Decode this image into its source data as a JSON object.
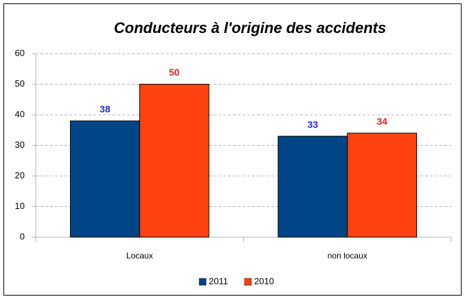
{
  "chart_data": {
    "type": "bar",
    "title": "Conducteurs à l'origine des accidents",
    "categories": [
      "Locaux",
      "non locaux"
    ],
    "series": [
      {
        "name": "2011",
        "color": "#004586",
        "label_color": "#2b2bd6",
        "values": [
          38,
          33
        ]
      },
      {
        "name": "2010",
        "color": "#ff420e",
        "label_color": "#e8201b",
        "values": [
          50,
          34
        ]
      }
    ],
    "ylim": [
      0,
      60
    ],
    "yticks": [
      0,
      10,
      20,
      30,
      40,
      50,
      60
    ],
    "grid": true,
    "legend": "bottom"
  }
}
